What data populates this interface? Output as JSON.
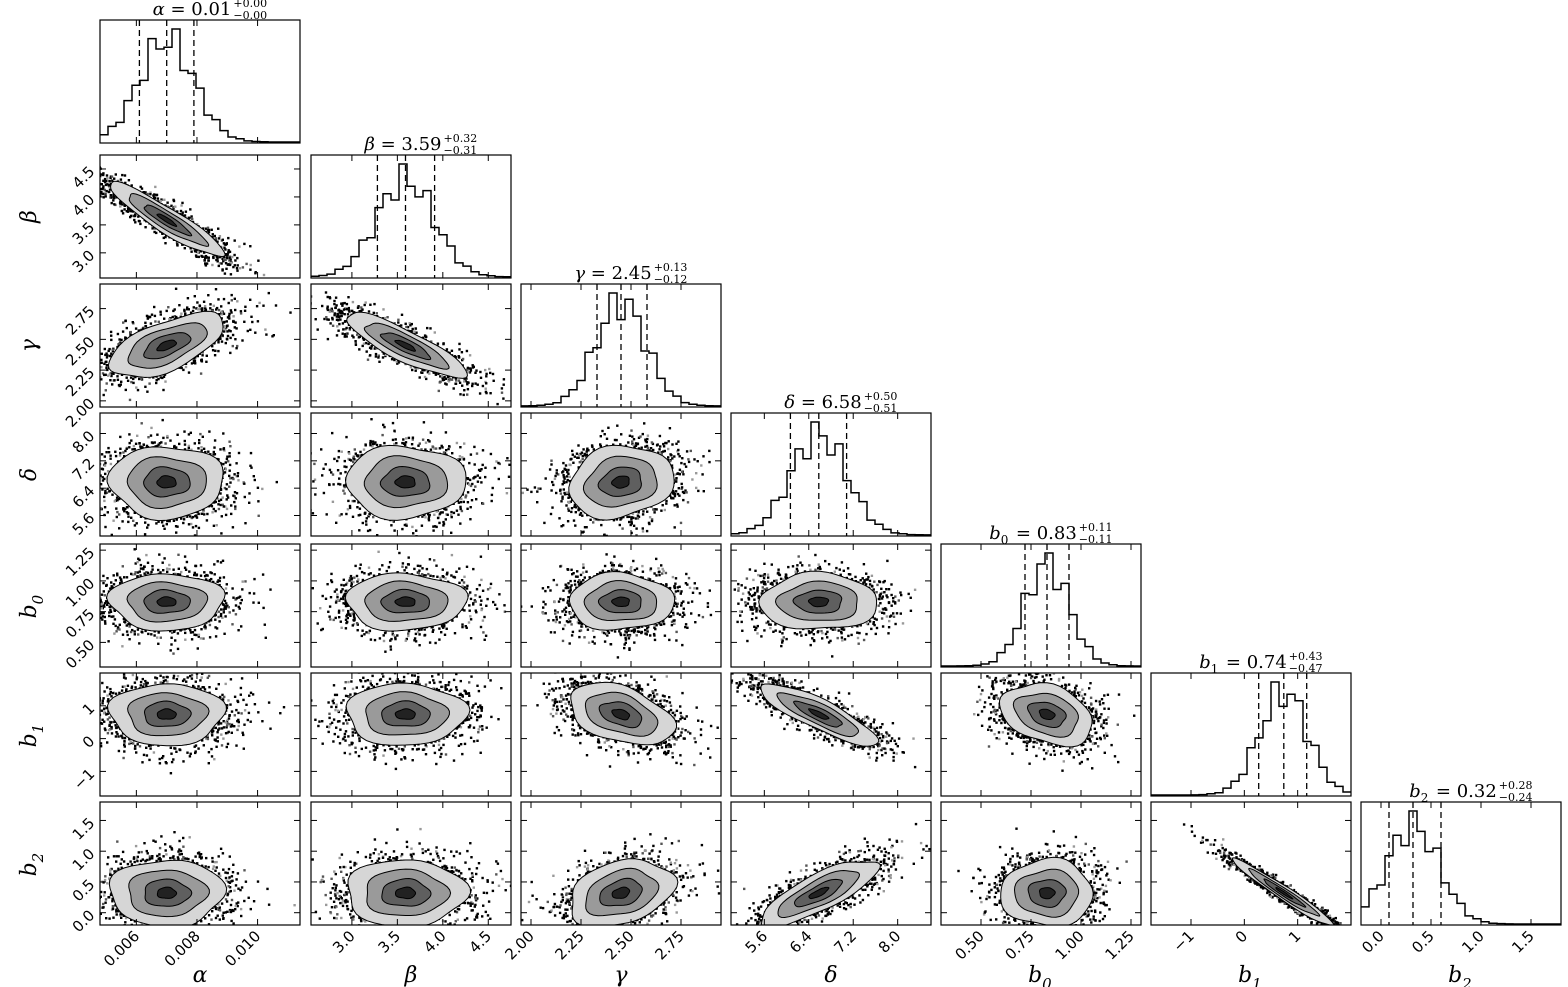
{
  "chart_data": {
    "type": "corner",
    "params": [
      {
        "sym": "α",
        "sub": "",
        "median": 0.007,
        "lo": 0.0061,
        "hi": 0.0079,
        "range": [
          0.0048,
          0.0114
        ],
        "ticks": [
          0.006,
          0.008,
          0.01
        ],
        "tick_labels": [
          "0.006",
          "0.008",
          "0.010"
        ],
        "title": "0.01",
        "plus": "+0.00",
        "minus": "−0.00"
      },
      {
        "sym": "β",
        "sub": "",
        "median": 3.59,
        "lo": 3.28,
        "hi": 3.91,
        "range": [
          2.55,
          4.75
        ],
        "ticks": [
          3.0,
          3.5,
          4.0,
          4.5
        ],
        "tick_labels": [
          "3.0",
          "3.5",
          "4.0",
          "4.5"
        ],
        "title": "3.59",
        "plus": "+0.32",
        "minus": "−0.31"
      },
      {
        "sym": "γ",
        "sub": "",
        "median": 2.45,
        "lo": 2.33,
        "hi": 2.58,
        "range": [
          1.95,
          2.95
        ],
        "ticks": [
          2.0,
          2.25,
          2.5,
          2.75
        ],
        "tick_labels": [
          "2.00",
          "2.25",
          "2.50",
          "2.75"
        ],
        "title": "2.45",
        "plus": "+0.13",
        "minus": "−0.12"
      },
      {
        "sym": "δ",
        "sub": "",
        "median": 6.58,
        "lo": 6.07,
        "hi": 7.08,
        "range": [
          5.0,
          8.6
        ],
        "ticks": [
          5.6,
          6.4,
          7.2,
          8.0
        ],
        "tick_labels": [
          "5.6",
          "6.4",
          "7.2",
          "8.0"
        ],
        "title": "6.58",
        "plus": "+0.50",
        "minus": "−0.51"
      },
      {
        "sym": "b",
        "sub": "0",
        "median": 0.83,
        "lo": 0.72,
        "hi": 0.94,
        "range": [
          0.3,
          1.3
        ],
        "ticks": [
          0.5,
          0.75,
          1.0,
          1.25
        ],
        "tick_labels": [
          "0.50",
          "0.75",
          "1.00",
          "1.25"
        ],
        "title": "0.83",
        "plus": "+0.11",
        "minus": "−0.11"
      },
      {
        "sym": "b",
        "sub": "1",
        "median": 0.74,
        "lo": 0.27,
        "hi": 1.17,
        "range": [
          -1.75,
          2.0
        ],
        "ticks": [
          -1,
          0,
          1
        ],
        "tick_labels": [
          "−1",
          "0",
          "1"
        ],
        "title": "0.74",
        "plus": "+0.43",
        "minus": "−0.47"
      },
      {
        "sym": "b",
        "sub": "2",
        "median": 0.32,
        "lo": 0.08,
        "hi": 0.6,
        "range": [
          -0.2,
          1.8
        ],
        "ticks": [
          0.0,
          0.5,
          1.0,
          1.5
        ],
        "tick_labels": [
          "0.0",
          "0.5",
          "1.0",
          "1.5"
        ],
        "title": "0.32",
        "plus": "+0.28",
        "minus": "−0.24"
      }
    ],
    "correlations": {
      "1-0": -0.92,
      "2-0": 0.6,
      "2-1": -0.85,
      "3-0": 0.0,
      "3-1": 0.0,
      "3-2": 0.15,
      "4-0": 0.0,
      "4-1": 0.0,
      "4-2": 0.0,
      "4-3": 0.0,
      "5-0": 0.0,
      "5-1": 0.0,
      "5-2": -0.4,
      "5-3": -0.85,
      "5-4": -0.3,
      "6-0": 0.0,
      "6-1": 0.0,
      "6-2": 0.3,
      "6-3": 0.8,
      "6-4": 0.0,
      "6-5": -0.97
    },
    "quantile_lines": "dashed (16%, 50%, 84%)",
    "contour_fills": [
      "#d6d6d6",
      "#9a9a9a",
      "#5f5f5f",
      "#222222"
    ],
    "scatter_color": "#000000"
  }
}
